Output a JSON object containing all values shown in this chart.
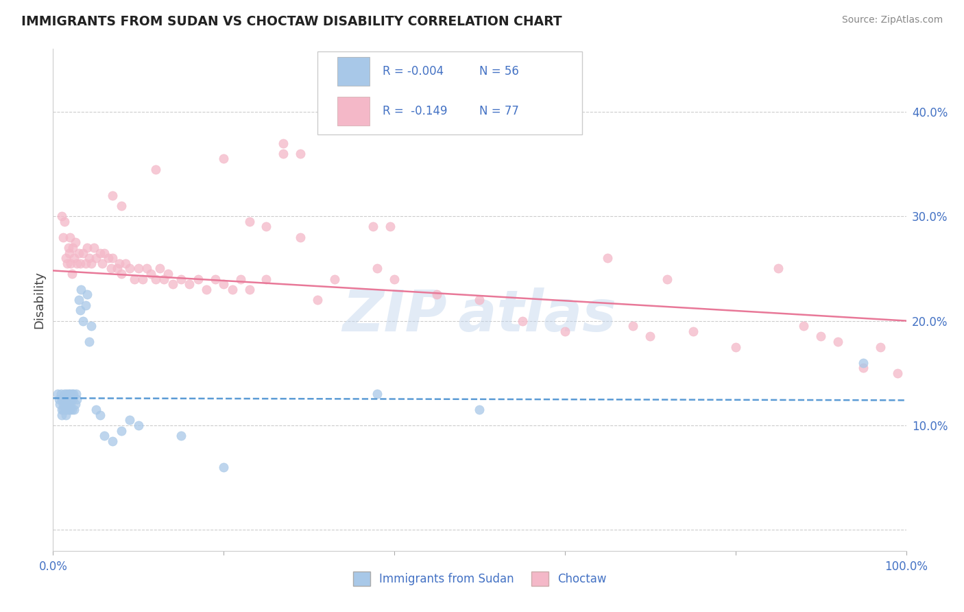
{
  "title": "IMMIGRANTS FROM SUDAN VS CHOCTAW DISABILITY CORRELATION CHART",
  "source": "Source: ZipAtlas.com",
  "ylabel": "Disability",
  "legend_labels": [
    "Immigrants from Sudan",
    "Choctaw"
  ],
  "r_blue": -0.004,
  "n_blue": 56,
  "r_pink": -0.149,
  "n_pink": 77,
  "blue_color": "#A8C8E8",
  "pink_color": "#F4B8C8",
  "blue_line_color": "#5B9BD5",
  "pink_line_color": "#E87898",
  "text_color": "#4472C4",
  "grid_color": "#CCCCCC",
  "blue_x": [
    0.005,
    0.007,
    0.008,
    0.009,
    0.01,
    0.01,
    0.01,
    0.011,
    0.012,
    0.012,
    0.013,
    0.013,
    0.014,
    0.014,
    0.015,
    0.015,
    0.016,
    0.016,
    0.017,
    0.017,
    0.018,
    0.018,
    0.019,
    0.019,
    0.02,
    0.02,
    0.021,
    0.021,
    0.022,
    0.022,
    0.023,
    0.024,
    0.025,
    0.026,
    0.027,
    0.028,
    0.03,
    0.032,
    0.033,
    0.035,
    0.038,
    0.04,
    0.042,
    0.045,
    0.05,
    0.055,
    0.06,
    0.07,
    0.08,
    0.09,
    0.1,
    0.15,
    0.2,
    0.38,
    0.5,
    0.95
  ],
  "blue_y": [
    0.13,
    0.125,
    0.12,
    0.13,
    0.125,
    0.115,
    0.11,
    0.125,
    0.12,
    0.115,
    0.13,
    0.12,
    0.115,
    0.125,
    0.12,
    0.11,
    0.13,
    0.115,
    0.12,
    0.125,
    0.115,
    0.13,
    0.12,
    0.125,
    0.13,
    0.115,
    0.12,
    0.125,
    0.13,
    0.115,
    0.125,
    0.13,
    0.115,
    0.12,
    0.13,
    0.125,
    0.22,
    0.21,
    0.23,
    0.2,
    0.215,
    0.225,
    0.18,
    0.195,
    0.115,
    0.11,
    0.09,
    0.085,
    0.095,
    0.105,
    0.1,
    0.09,
    0.06,
    0.13,
    0.115,
    0.16
  ],
  "pink_x": [
    0.01,
    0.012,
    0.013,
    0.015,
    0.017,
    0.018,
    0.019,
    0.02,
    0.021,
    0.022,
    0.023,
    0.025,
    0.026,
    0.028,
    0.03,
    0.032,
    0.035,
    0.038,
    0.04,
    0.042,
    0.045,
    0.048,
    0.05,
    0.055,
    0.058,
    0.06,
    0.065,
    0.068,
    0.07,
    0.075,
    0.078,
    0.08,
    0.085,
    0.09,
    0.095,
    0.1,
    0.105,
    0.11,
    0.115,
    0.12,
    0.125,
    0.13,
    0.135,
    0.14,
    0.15,
    0.16,
    0.17,
    0.18,
    0.19,
    0.2,
    0.21,
    0.22,
    0.23,
    0.25,
    0.27,
    0.29,
    0.31,
    0.33,
    0.38,
    0.4,
    0.45,
    0.5,
    0.55,
    0.6,
    0.65,
    0.68,
    0.7,
    0.72,
    0.75,
    0.8,
    0.85,
    0.88,
    0.9,
    0.92,
    0.95,
    0.97,
    0.99
  ],
  "pink_y": [
    0.3,
    0.28,
    0.295,
    0.26,
    0.255,
    0.27,
    0.265,
    0.28,
    0.255,
    0.245,
    0.27,
    0.26,
    0.275,
    0.255,
    0.265,
    0.255,
    0.265,
    0.255,
    0.27,
    0.26,
    0.255,
    0.27,
    0.26,
    0.265,
    0.255,
    0.265,
    0.26,
    0.25,
    0.26,
    0.25,
    0.255,
    0.245,
    0.255,
    0.25,
    0.24,
    0.25,
    0.24,
    0.25,
    0.245,
    0.24,
    0.25,
    0.24,
    0.245,
    0.235,
    0.24,
    0.235,
    0.24,
    0.23,
    0.24,
    0.235,
    0.23,
    0.24,
    0.23,
    0.24,
    0.36,
    0.28,
    0.22,
    0.24,
    0.25,
    0.24,
    0.225,
    0.22,
    0.2,
    0.19,
    0.26,
    0.195,
    0.185,
    0.24,
    0.19,
    0.175,
    0.25,
    0.195,
    0.185,
    0.18,
    0.155,
    0.175,
    0.15
  ],
  "pink_high_x": [
    0.27,
    0.29,
    0.2,
    0.12,
    0.07,
    0.08,
    0.375,
    0.395,
    0.23,
    0.25
  ],
  "pink_high_y": [
    0.37,
    0.36,
    0.355,
    0.345,
    0.32,
    0.31,
    0.29,
    0.29,
    0.295,
    0.29
  ],
  "xlim": [
    0.0,
    1.0
  ],
  "ylim": [
    -0.02,
    0.46
  ],
  "ytick_positions": [
    0.0,
    0.1,
    0.2,
    0.3,
    0.4
  ],
  "ytick_labels": [
    "",
    "10.0%",
    "20.0%",
    "30.0%",
    "40.0%"
  ],
  "xtick_positions": [
    0.0,
    0.2,
    0.4,
    0.6,
    0.8,
    1.0
  ],
  "xtick_labels": [
    "0.0%",
    "",
    "",
    "",
    "",
    "100.0%"
  ]
}
